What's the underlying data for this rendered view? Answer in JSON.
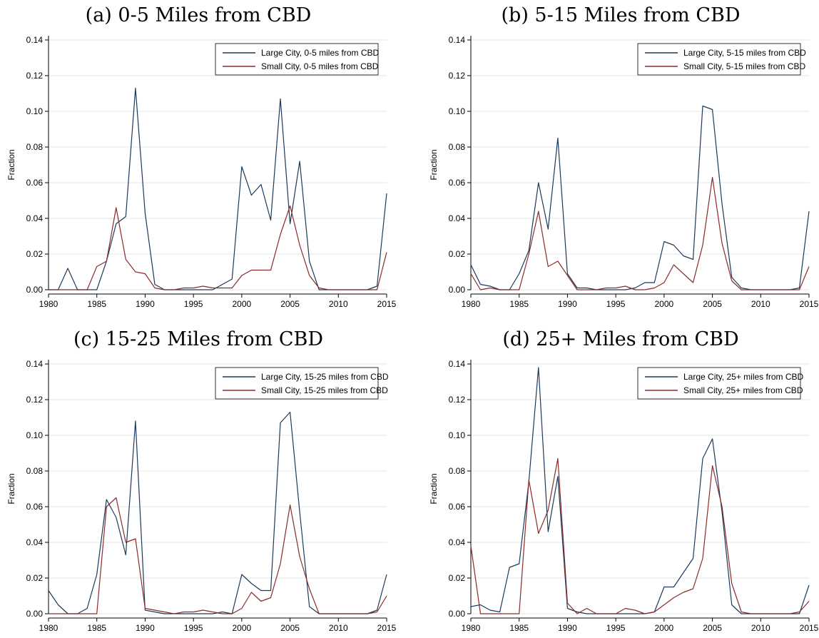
{
  "chart_data": [
    {
      "type": "line",
      "title": "(a) 0-5 Miles from CBD",
      "ylabel": "Fraction",
      "xlabel": "",
      "xlim": [
        1980,
        2015
      ],
      "ylim": [
        0,
        0.14
      ],
      "xticks": [
        "1980",
        "1985",
        "1990",
        "1995",
        "2000",
        "2005",
        "2010",
        "2015"
      ],
      "yticks": [
        "0.00",
        "0.02",
        "0.04",
        "0.06",
        "0.08",
        "0.10",
        "0.12",
        "0.14"
      ],
      "grid": true,
      "legend_position": "top-right",
      "x": [
        1980,
        1981,
        1982,
        1983,
        1984,
        1985,
        1986,
        1987,
        1988,
        1989,
        1990,
        1991,
        1992,
        1993,
        1994,
        1995,
        1996,
        1997,
        1998,
        1999,
        2000,
        2001,
        2002,
        2003,
        2004,
        2005,
        2006,
        2007,
        2008,
        2009,
        2010,
        2011,
        2012,
        2013,
        2014,
        2015
      ],
      "series": [
        {
          "name": "Large City, 0-5 miles from CBD",
          "color": "#1a3a5c",
          "values": [
            0,
            0,
            0.012,
            0,
            0,
            0,
            0.016,
            0.037,
            0.041,
            0.113,
            0.043,
            0.003,
            0,
            0,
            0,
            0,
            0,
            0,
            0.003,
            0.006,
            0.069,
            0.053,
            0.059,
            0.039,
            0.107,
            0.037,
            0.072,
            0.016,
            0,
            0,
            0,
            0,
            0,
            0,
            0.002,
            0.054
          ]
        },
        {
          "name": "Small City, 0-5 miles from CBD",
          "color": "#8b2a2a",
          "values": [
            0,
            0,
            0,
            0,
            0,
            0.013,
            0.016,
            0.046,
            0.017,
            0.01,
            0.009,
            0.001,
            0,
            0,
            0.001,
            0.001,
            0.002,
            0.001,
            0.001,
            0.001,
            0.008,
            0.011,
            0.011,
            0.011,
            0.031,
            0.047,
            0.025,
            0.008,
            0.001,
            0,
            0,
            0,
            0,
            0,
            0,
            0.021
          ]
        }
      ]
    },
    {
      "type": "line",
      "title": "(b) 5-15 Miles from CBD",
      "ylabel": "Fraction",
      "xlabel": "",
      "xlim": [
        1980,
        2015
      ],
      "ylim": [
        0,
        0.14
      ],
      "xticks": [
        "1980",
        "1985",
        "1990",
        "1995",
        "2000",
        "2005",
        "2010",
        "2015"
      ],
      "yticks": [
        "0.00",
        "0.02",
        "0.04",
        "0.06",
        "0.08",
        "0.10",
        "0.12",
        "0.14"
      ],
      "grid": true,
      "legend_position": "top-right",
      "x": [
        1980,
        1981,
        1982,
        1983,
        1984,
        1985,
        1986,
        1987,
        1988,
        1989,
        1990,
        1991,
        1992,
        1993,
        1994,
        1995,
        1996,
        1997,
        1998,
        1999,
        2000,
        2001,
        2002,
        2003,
        2004,
        2005,
        2006,
        2007,
        2008,
        2009,
        2010,
        2011,
        2012,
        2013,
        2014,
        2015
      ],
      "series": [
        {
          "name": "Large City, 5-15 miles from CBD",
          "color": "#1a3a5c",
          "values": [
            0.014,
            0.003,
            0.002,
            0,
            0,
            0.009,
            0.022,
            0.06,
            0.034,
            0.085,
            0.009,
            0.001,
            0.001,
            0,
            0,
            0,
            0,
            0.001,
            0.004,
            0.004,
            0.027,
            0.025,
            0.019,
            0.017,
            0.103,
            0.101,
            0.048,
            0.007,
            0.001,
            0,
            0,
            0,
            0,
            0,
            0.001,
            0.044
          ]
        },
        {
          "name": "Small City, 5-15 miles from CBD",
          "color": "#8b2a2a",
          "values": [
            0.009,
            0,
            0.001,
            0,
            0,
            0,
            0.02,
            0.044,
            0.013,
            0.016,
            0.008,
            0,
            0,
            0,
            0.001,
            0.001,
            0.002,
            0,
            0,
            0.001,
            0.004,
            0.014,
            0.009,
            0.004,
            0.025,
            0.063,
            0.026,
            0.005,
            0,
            0,
            0,
            0,
            0,
            0,
            0,
            0.013
          ]
        }
      ]
    },
    {
      "type": "line",
      "title": "(c) 15-25 Miles from CBD",
      "ylabel": "Fraction",
      "xlabel": "",
      "xlim": [
        1980,
        2015
      ],
      "ylim": [
        0,
        0.14
      ],
      "xticks": [
        "1980",
        "1985",
        "1990",
        "1995",
        "2000",
        "2005",
        "2010",
        "2015"
      ],
      "yticks": [
        "0.00",
        "0.02",
        "0.04",
        "0.06",
        "0.08",
        "0.10",
        "0.12",
        "0.14"
      ],
      "grid": true,
      "legend_position": "top-right",
      "x": [
        1980,
        1981,
        1982,
        1983,
        1984,
        1985,
        1986,
        1987,
        1988,
        1989,
        1990,
        1991,
        1992,
        1993,
        1994,
        1995,
        1996,
        1997,
        1998,
        1999,
        2000,
        2001,
        2002,
        2003,
        2004,
        2005,
        2006,
        2007,
        2008,
        2009,
        2010,
        2011,
        2012,
        2013,
        2014,
        2015
      ],
      "series": [
        {
          "name": "Large City, 15-25 miles from CBD",
          "color": "#1a3a5c",
          "values": [
            0.013,
            0.005,
            0,
            0,
            0.003,
            0.022,
            0.064,
            0.054,
            0.033,
            0.108,
            0.002,
            0.001,
            0,
            0,
            0,
            0,
            0,
            0,
            0.001,
            0,
            0.022,
            0.017,
            0.013,
            0.013,
            0.107,
            0.113,
            0.057,
            0.004,
            0,
            0,
            0,
            0,
            0,
            0,
            0.002,
            0.022
          ]
        },
        {
          "name": "Small City, 15-25 miles from CBD",
          "color": "#8b2a2a",
          "values": [
            0,
            0,
            0,
            0,
            0,
            0,
            0.06,
            0.065,
            0.04,
            0.042,
            0.003,
            0.002,
            0.001,
            0,
            0.001,
            0.001,
            0.002,
            0.001,
            0,
            0,
            0.003,
            0.012,
            0.007,
            0.009,
            0.028,
            0.061,
            0.032,
            0.014,
            0,
            0,
            0,
            0,
            0,
            0,
            0.001,
            0.01
          ]
        }
      ]
    },
    {
      "type": "line",
      "title": "(d) 25+ Miles from CBD",
      "ylabel": "Fraction",
      "xlabel": "",
      "xlim": [
        1980,
        2015
      ],
      "ylim": [
        0,
        0.14
      ],
      "xticks": [
        "1980",
        "1985",
        "1990",
        "1995",
        "2000",
        "2005",
        "2010",
        "2015"
      ],
      "yticks": [
        "0.00",
        "0.02",
        "0.04",
        "0.06",
        "0.08",
        "0.10",
        "0.12",
        "0.14"
      ],
      "grid": true,
      "legend_position": "top-right",
      "x": [
        1980,
        1981,
        1982,
        1983,
        1984,
        1985,
        1986,
        1987,
        1988,
        1989,
        1990,
        1991,
        1992,
        1993,
        1994,
        1995,
        1996,
        1997,
        1998,
        1999,
        2000,
        2001,
        2002,
        2003,
        2004,
        2005,
        2006,
        2007,
        2008,
        2009,
        2010,
        2011,
        2012,
        2013,
        2014,
        2015
      ],
      "series": [
        {
          "name": "Large City, 25+ miles from CBD",
          "color": "#1a3a5c",
          "values": [
            0.004,
            0.005,
            0.002,
            0.001,
            0.026,
            0.028,
            0.074,
            0.138,
            0.046,
            0.077,
            0.003,
            0.001,
            0,
            0,
            0,
            0,
            0,
            0,
            0,
            0.001,
            0.015,
            0.015,
            0.023,
            0.031,
            0.087,
            0.098,
            0.057,
            0.005,
            0,
            0,
            0,
            0,
            0,
            0,
            0,
            0.016
          ]
        },
        {
          "name": "Small City, 25+ miles from CBD",
          "color": "#8b2a2a",
          "values": [
            0.038,
            0,
            0,
            0,
            0,
            0,
            0.075,
            0.045,
            0.058,
            0.087,
            0.006,
            0,
            0.003,
            0,
            0,
            0,
            0.003,
            0.002,
            0,
            0.001,
            0.005,
            0.009,
            0.012,
            0.014,
            0.031,
            0.083,
            0.06,
            0.017,
            0.001,
            0,
            0,
            0,
            0,
            0,
            0.001,
            0.007
          ]
        }
      ]
    }
  ]
}
